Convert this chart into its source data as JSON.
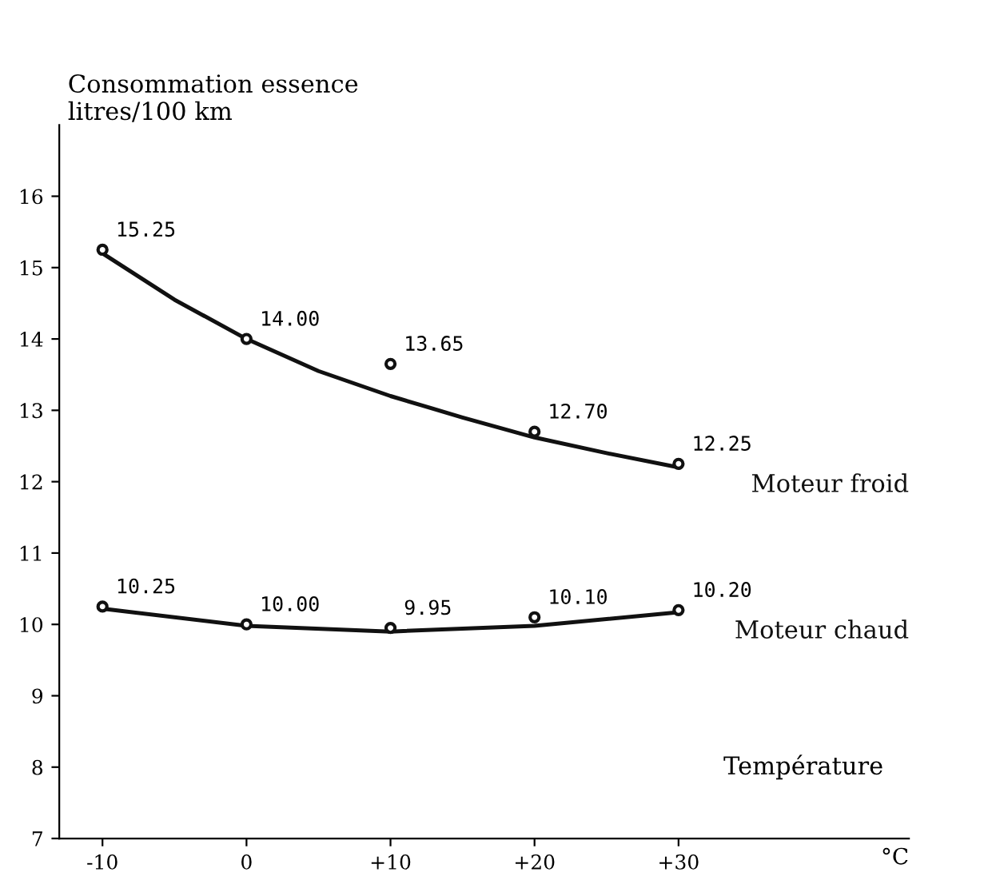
{
  "chart_data": {
    "type": "scatter",
    "xlabel": "°C",
    "ylabel": "Consommation essence\nlitres/100 km",
    "x": [
      -10,
      0,
      10,
      20,
      30
    ],
    "series": [
      {
        "name": "Moteur froid",
        "color": "#111111",
        "values": [
          15.25,
          14.0,
          13.65,
          12.7,
          12.25
        ],
        "value_labels": [
          "15.25",
          "14.00",
          "13.65",
          "12.70",
          "12.25"
        ]
      },
      {
        "name": "Moteur chaud",
        "color": "#111111",
        "values": [
          10.25,
          10.0,
          9.95,
          10.1,
          10.2
        ],
        "value_labels": [
          "10.25",
          "10.00",
          "9.95",
          "10.10",
          "10.20"
        ]
      },
      {
        "type": "line",
        "marker": "none",
        "color": "#111111",
        "x": [
          -10,
          -5,
          0,
          5,
          10,
          15,
          20,
          25,
          30
        ],
        "values": [
          15.2,
          14.55,
          14.0,
          13.55,
          13.2,
          12.9,
          12.62,
          12.4,
          12.2
        ]
      },
      {
        "type": "line",
        "marker": "none",
        "color": "#111111",
        "x": [
          -10,
          0,
          10,
          20,
          30
        ],
        "values": [
          10.22,
          9.98,
          9.9,
          9.98,
          10.17
        ]
      }
    ],
    "xlim": [
      -13,
      46
    ],
    "ylim": [
      7,
      17
    ],
    "xticks": [
      {
        "value": -10,
        "label": "-10"
      },
      0,
      {
        "value": 10,
        "label": "+10"
      },
      {
        "value": 20,
        "label": "+20"
      },
      {
        "value": 30,
        "label": "+30"
      }
    ],
    "yticks": [
      7,
      8,
      9,
      10,
      11,
      12,
      13,
      14,
      15,
      16
    ],
    "annotations": [
      "Température"
    ],
    "marker": "circle",
    "line_style": "solid",
    "grid": false
  }
}
